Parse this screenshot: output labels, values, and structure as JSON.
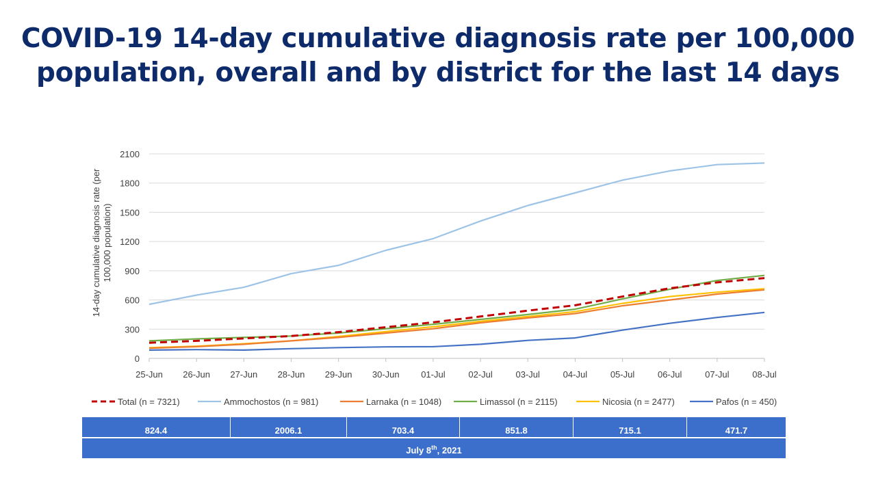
{
  "title": {
    "line1": "COVID-19 14-day cumulative diagnosis rate per 100,000",
    "line2": "population, overall and by district for the last 14 days"
  },
  "chart_data": {
    "type": "line",
    "ylabel": "14-day cumulative diagnosis rate (per 100,000 population)",
    "ylabel_lines": [
      "14-day cumulative diagnosis rate (per",
      "100,000 population)"
    ],
    "ylim": [
      0,
      2100
    ],
    "yticks": [
      0,
      300,
      600,
      900,
      1200,
      1500,
      1800,
      2100
    ],
    "grid": true,
    "legend_position": "bottom",
    "categories": [
      "25-Jun",
      "26-Jun",
      "27-Jun",
      "28-Jun",
      "29-Jun",
      "30-Jun",
      "01-Jul",
      "02-Jul",
      "03-Jul",
      "04-Jul",
      "05-Jul",
      "06-Jul",
      "07-Jul",
      "08-Jul"
    ],
    "series": [
      {
        "name": "Total (n = 7321)",
        "color": "#c00000",
        "dashed": true,
        "values": [
          160,
          180,
          205,
          230,
          270,
          320,
          370,
          430,
          490,
          545,
          635,
          720,
          780,
          824.4
        ]
      },
      {
        "name": "Ammochostos (n = 981)",
        "color": "#9dc3e6",
        "dashed": false,
        "values": [
          555,
          650,
          730,
          870,
          955,
          1110,
          1230,
          1410,
          1570,
          1700,
          1830,
          1925,
          1990,
          2006.1
        ]
      },
      {
        "name": "Larnaka (n = 1048)",
        "color": "#ed7d31",
        "dashed": false,
        "values": [
          105,
          120,
          145,
          180,
          215,
          260,
          305,
          365,
          415,
          460,
          540,
          600,
          660,
          703.4
        ]
      },
      {
        "name": "Limassol (n = 2115)",
        "color": "#70ad47",
        "dashed": false,
        "values": [
          180,
          200,
          215,
          230,
          260,
          305,
          350,
          400,
          450,
          505,
          610,
          710,
          800,
          851.8
        ]
      },
      {
        "name": "Nicosia (n = 2477)",
        "color": "#ffc000",
        "dashed": false,
        "values": [
          110,
          125,
          150,
          180,
          225,
          275,
          325,
          380,
          430,
          480,
          565,
          635,
          680,
          715.1
        ]
      },
      {
        "name": "Pafos (n = 450)",
        "color": "#4472c4",
        "dashed": false,
        "values": [
          85,
          90,
          85,
          100,
          110,
          118,
          120,
          145,
          185,
          210,
          290,
          360,
          420,
          471.7
        ]
      }
    ]
  },
  "summary_values": [
    "824.4",
    "2006.1",
    "703.4",
    "851.8",
    "715.1",
    "471.7"
  ],
  "date_footer": {
    "prefix": "July 8",
    "suffix": "th",
    "rest": ", 2021"
  }
}
